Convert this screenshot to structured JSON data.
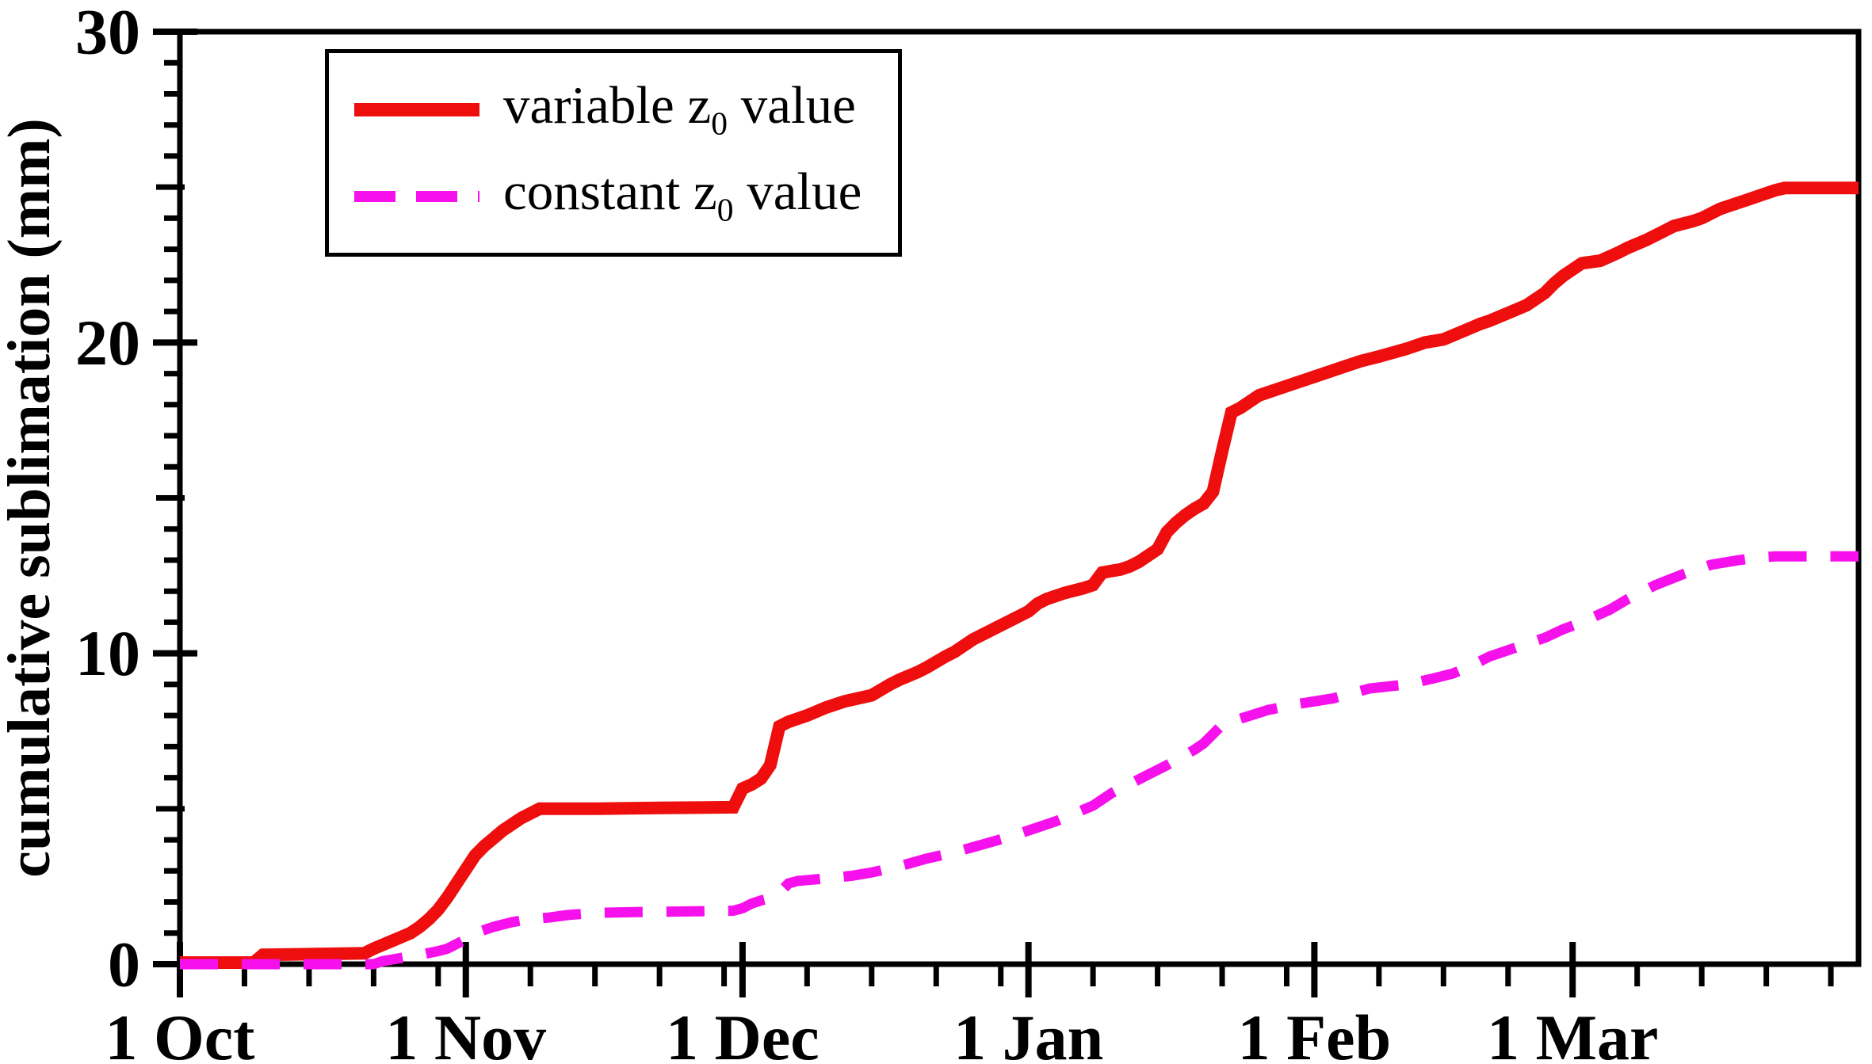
{
  "figure": {
    "background_color": "#ffffff",
    "frame_color": "#000000"
  },
  "legend": {
    "items": [
      {
        "pre": "variable z",
        "sub": "0",
        "post": " value"
      },
      {
        "pre": "constant z",
        "sub": "0",
        "post": " value"
      }
    ]
  },
  "chart_data": {
    "type": "line",
    "title": "",
    "xlabel": "",
    "ylabel": "cumulative sublimation (mm)",
    "x_unit": "days since 1 Oct",
    "xlim": [
      0,
      182
    ],
    "ylim": [
      0,
      30
    ],
    "grid": false,
    "legend_position": "top-left",
    "x_major_ticks": [
      {
        "day": 0,
        "label": "1 Oct"
      },
      {
        "day": 31,
        "label": "1 Nov"
      },
      {
        "day": 61,
        "label": "1 Dec"
      },
      {
        "day": 92,
        "label": "1 Jan"
      },
      {
        "day": 123,
        "label": "1 Feb"
      },
      {
        "day": 151,
        "label": "1 Mar"
      }
    ],
    "x_minor_tick_days": [
      7,
      14,
      21,
      28,
      38,
      45,
      52,
      59,
      68,
      75,
      82,
      89,
      99,
      106,
      113,
      120,
      130,
      137,
      144,
      158,
      165,
      172,
      179
    ],
    "y_major_ticks": [
      {
        "value": 0,
        "label": "0"
      },
      {
        "value": 10,
        "label": "10"
      },
      {
        "value": 20,
        "label": "20"
      },
      {
        "value": 30,
        "label": "30"
      }
    ],
    "y_medium_tick_values": [
      5,
      15,
      25
    ],
    "y_minor_tick_values": [
      1,
      2,
      3,
      4,
      6,
      7,
      8,
      9,
      11,
      12,
      13,
      14,
      16,
      17,
      18,
      19,
      21,
      22,
      23,
      24,
      26,
      27,
      28,
      29
    ],
    "series": [
      {
        "id": "variable-z0",
        "name": "variable z0 value",
        "color": "#ee0e0e",
        "line_style": "solid",
        "line_width": 16,
        "dash": null,
        "points": [
          [
            0,
            0.05
          ],
          [
            8,
            0.05
          ],
          [
            9,
            0.3
          ],
          [
            20,
            0.35
          ],
          [
            21,
            0.5
          ],
          [
            23,
            0.75
          ],
          [
            25,
            1.0
          ],
          [
            26,
            1.2
          ],
          [
            27,
            1.45
          ],
          [
            28,
            1.75
          ],
          [
            29,
            2.15
          ],
          [
            30,
            2.6
          ],
          [
            31,
            3.05
          ],
          [
            32,
            3.5
          ],
          [
            33,
            3.8
          ],
          [
            34,
            4.05
          ],
          [
            35,
            4.3
          ],
          [
            36,
            4.5
          ],
          [
            37,
            4.7
          ],
          [
            38,
            4.85
          ],
          [
            39,
            5.0
          ],
          [
            45,
            5.0
          ],
          [
            52,
            5.03
          ],
          [
            60,
            5.05
          ],
          [
            61,
            5.65
          ],
          [
            62,
            5.78
          ],
          [
            63,
            5.97
          ],
          [
            64,
            6.4
          ],
          [
            65,
            7.65
          ],
          [
            66,
            7.8
          ],
          [
            68,
            8.0
          ],
          [
            70,
            8.25
          ],
          [
            72,
            8.45
          ],
          [
            75,
            8.65
          ],
          [
            77,
            9.0
          ],
          [
            78,
            9.15
          ],
          [
            80,
            9.4
          ],
          [
            81,
            9.55
          ],
          [
            83,
            9.9
          ],
          [
            84,
            10.05
          ],
          [
            86,
            10.45
          ],
          [
            87,
            10.6
          ],
          [
            89,
            10.9
          ],
          [
            90,
            11.05
          ],
          [
            92,
            11.35
          ],
          [
            93,
            11.6
          ],
          [
            94,
            11.75
          ],
          [
            96,
            11.95
          ],
          [
            98,
            12.1
          ],
          [
            99,
            12.2
          ],
          [
            100,
            12.6
          ],
          [
            102,
            12.7
          ],
          [
            103,
            12.8
          ],
          [
            104,
            12.95
          ],
          [
            105,
            13.15
          ],
          [
            106,
            13.35
          ],
          [
            107,
            13.9
          ],
          [
            108,
            14.2
          ],
          [
            109,
            14.45
          ],
          [
            110,
            14.65
          ],
          [
            111,
            14.82
          ],
          [
            112,
            15.2
          ],
          [
            113,
            16.5
          ],
          [
            114,
            17.75
          ],
          [
            115,
            17.9
          ],
          [
            116,
            18.1
          ],
          [
            117,
            18.3
          ],
          [
            119,
            18.5
          ],
          [
            121,
            18.7
          ],
          [
            123,
            18.9
          ],
          [
            126,
            19.2
          ],
          [
            128,
            19.4
          ],
          [
            130,
            19.55
          ],
          [
            133,
            19.8
          ],
          [
            135,
            20.0
          ],
          [
            137,
            20.1
          ],
          [
            139,
            20.35
          ],
          [
            141,
            20.6
          ],
          [
            142,
            20.7
          ],
          [
            144,
            20.95
          ],
          [
            146,
            21.2
          ],
          [
            148,
            21.6
          ],
          [
            149,
            21.9
          ],
          [
            150,
            22.15
          ],
          [
            152,
            22.55
          ],
          [
            154,
            22.63
          ],
          [
            156,
            22.9
          ],
          [
            157,
            23.05
          ],
          [
            159,
            23.3
          ],
          [
            161,
            23.6
          ],
          [
            162,
            23.75
          ],
          [
            164,
            23.9
          ],
          [
            165,
            24.0
          ],
          [
            167,
            24.3
          ],
          [
            168,
            24.4
          ],
          [
            170,
            24.6
          ],
          [
            171,
            24.7
          ],
          [
            173,
            24.9
          ],
          [
            174,
            24.97
          ],
          [
            182,
            24.97
          ]
        ]
      },
      {
        "id": "constant-z0",
        "name": "constant z0 value",
        "color": "#f610ec",
        "line_style": "dashed",
        "line_width": 13,
        "dash": [
          48,
          30
        ],
        "points": [
          [
            0,
            0.0
          ],
          [
            21,
            0.0
          ],
          [
            22,
            0.1
          ],
          [
            24,
            0.2
          ],
          [
            26,
            0.3
          ],
          [
            28,
            0.42
          ],
          [
            29,
            0.5
          ],
          [
            30,
            0.65
          ],
          [
            31,
            0.8
          ],
          [
            32,
            1.0
          ],
          [
            34,
            1.2
          ],
          [
            36,
            1.35
          ],
          [
            38,
            1.45
          ],
          [
            40,
            1.5
          ],
          [
            42,
            1.58
          ],
          [
            45,
            1.65
          ],
          [
            50,
            1.68
          ],
          [
            56,
            1.7
          ],
          [
            60,
            1.72
          ],
          [
            61,
            1.8
          ],
          [
            62,
            1.95
          ],
          [
            63,
            2.05
          ],
          [
            64,
            2.12
          ],
          [
            65,
            2.3
          ],
          [
            66,
            2.6
          ],
          [
            67,
            2.68
          ],
          [
            69,
            2.73
          ],
          [
            71,
            2.78
          ],
          [
            73,
            2.85
          ],
          [
            75,
            2.95
          ],
          [
            78,
            3.15
          ],
          [
            81,
            3.4
          ],
          [
            84,
            3.6
          ],
          [
            87,
            3.85
          ],
          [
            90,
            4.1
          ],
          [
            92,
            4.3
          ],
          [
            95,
            4.6
          ],
          [
            97,
            4.85
          ],
          [
            99,
            5.1
          ],
          [
            101,
            5.5
          ],
          [
            104,
            5.95
          ],
          [
            107,
            6.4
          ],
          [
            110,
            6.9
          ],
          [
            111,
            7.1
          ],
          [
            112,
            7.4
          ],
          [
            113,
            7.7
          ],
          [
            115,
            7.9
          ],
          [
            118,
            8.18
          ],
          [
            121,
            8.36
          ],
          [
            125,
            8.55
          ],
          [
            129,
            8.87
          ],
          [
            133,
            9.0
          ],
          [
            136,
            9.2
          ],
          [
            138,
            9.35
          ],
          [
            140,
            9.6
          ],
          [
            142,
            9.9
          ],
          [
            145,
            10.2
          ],
          [
            148,
            10.5
          ],
          [
            150,
            10.78
          ],
          [
            152,
            11.0
          ],
          [
            155,
            11.4
          ],
          [
            157,
            11.75
          ],
          [
            160,
            12.2
          ],
          [
            163,
            12.55
          ],
          [
            166,
            12.85
          ],
          [
            169,
            13.0
          ],
          [
            171,
            13.08
          ],
          [
            173,
            13.12
          ],
          [
            182,
            13.12
          ]
        ]
      }
    ]
  }
}
